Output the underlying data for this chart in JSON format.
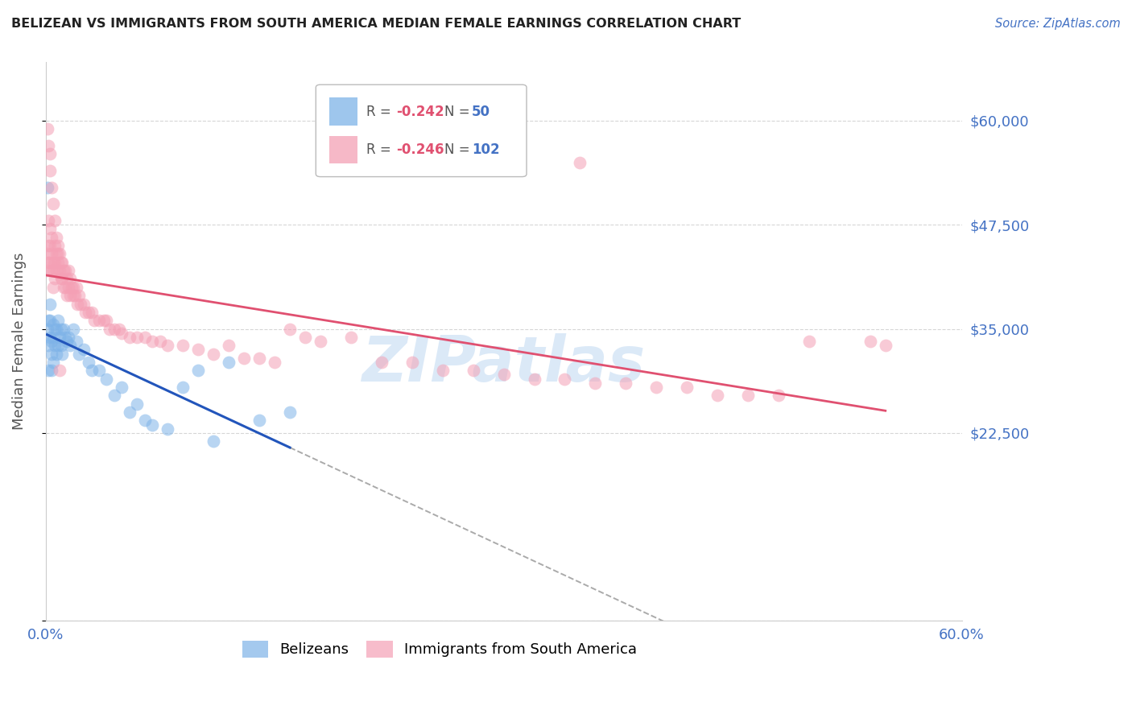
{
  "title": "BELIZEAN VS IMMIGRANTS FROM SOUTH AMERICA MEDIAN FEMALE EARNINGS CORRELATION CHART",
  "source": "Source: ZipAtlas.com",
  "ylabel": "Median Female Earnings",
  "xlim": [
    0.0,
    0.6
  ],
  "ylim": [
    0,
    67000
  ],
  "yticks": [
    0,
    22500,
    35000,
    47500,
    60000
  ],
  "ytick_labels": [
    "",
    "$22,500",
    "$35,000",
    "$47,500",
    "$60,000"
  ],
  "xticks": [
    0.0,
    0.1,
    0.2,
    0.3,
    0.4,
    0.5,
    0.6
  ],
  "xtick_labels": [
    "0.0%",
    "",
    "",
    "",
    "",
    "",
    "60.0%"
  ],
  "series1_name": "Belizeans",
  "series1_color": "#7eb3e8",
  "series1_line_color": "#2255bb",
  "series2_name": "Immigrants from South America",
  "series2_color": "#f4a0b5",
  "series2_line_color": "#e05070",
  "title_color": "#222222",
  "source_color": "#4472c4",
  "axis_label_color": "#555555",
  "ytick_color": "#4472c4",
  "xtick_color": "#4472c4",
  "grid_color": "#cccccc",
  "watermark": "ZIPatlas",
  "watermark_color": "#b8d4f0",
  "legend_R_color": "#e05070",
  "legend_N_color": "#4472c4",
  "bel_x": [
    0.001,
    0.001,
    0.002,
    0.002,
    0.002,
    0.003,
    0.003,
    0.003,
    0.004,
    0.004,
    0.004,
    0.005,
    0.005,
    0.005,
    0.006,
    0.006,
    0.007,
    0.007,
    0.008,
    0.008,
    0.009,
    0.01,
    0.01,
    0.011,
    0.012,
    0.013,
    0.014,
    0.015,
    0.016,
    0.018,
    0.02,
    0.022,
    0.025,
    0.028,
    0.03,
    0.035,
    0.04,
    0.045,
    0.05,
    0.055,
    0.06,
    0.065,
    0.07,
    0.08,
    0.09,
    0.1,
    0.11,
    0.12,
    0.14,
    0.16
  ],
  "bel_y": [
    52000,
    35000,
    36000,
    33000,
    30000,
    38000,
    36000,
    34000,
    33500,
    32000,
    30000,
    35500,
    34000,
    31000,
    35000,
    33000,
    35000,
    32000,
    36000,
    33000,
    34000,
    35000,
    33000,
    32000,
    35000,
    34000,
    33500,
    34000,
    33000,
    35000,
    33500,
    32000,
    32500,
    31000,
    30000,
    30000,
    29000,
    27000,
    28000,
    25000,
    26000,
    24000,
    23500,
    23000,
    28000,
    30000,
    21500,
    31000,
    24000,
    25000
  ],
  "sa_x": [
    0.001,
    0.001,
    0.002,
    0.002,
    0.002,
    0.003,
    0.003,
    0.003,
    0.004,
    0.004,
    0.004,
    0.005,
    0.005,
    0.005,
    0.006,
    0.006,
    0.006,
    0.007,
    0.007,
    0.008,
    0.008,
    0.009,
    0.009,
    0.01,
    0.01,
    0.011,
    0.011,
    0.012,
    0.012,
    0.013,
    0.013,
    0.014,
    0.014,
    0.015,
    0.015,
    0.016,
    0.016,
    0.017,
    0.018,
    0.018,
    0.019,
    0.02,
    0.021,
    0.022,
    0.023,
    0.025,
    0.026,
    0.028,
    0.03,
    0.032,
    0.035,
    0.038,
    0.04,
    0.042,
    0.045,
    0.048,
    0.05,
    0.055,
    0.06,
    0.065,
    0.07,
    0.075,
    0.08,
    0.09,
    0.1,
    0.11,
    0.12,
    0.13,
    0.14,
    0.15,
    0.16,
    0.17,
    0.18,
    0.2,
    0.22,
    0.24,
    0.26,
    0.28,
    0.3,
    0.32,
    0.34,
    0.36,
    0.38,
    0.4,
    0.35,
    0.42,
    0.44,
    0.46,
    0.48,
    0.5,
    0.001,
    0.002,
    0.003,
    0.003,
    0.004,
    0.005,
    0.006,
    0.007,
    0.008,
    0.009,
    0.55,
    0.54
  ],
  "sa_y": [
    44000,
    42000,
    48000,
    45000,
    43000,
    47000,
    45000,
    43000,
    46000,
    44000,
    42000,
    43000,
    42000,
    40000,
    45000,
    43000,
    41000,
    44000,
    42000,
    45000,
    43000,
    44000,
    42000,
    43000,
    41000,
    43000,
    41000,
    42000,
    40000,
    42000,
    40000,
    41000,
    39000,
    42000,
    40000,
    41000,
    39000,
    40000,
    40000,
    39000,
    39000,
    40000,
    38000,
    39000,
    38000,
    38000,
    37000,
    37000,
    37000,
    36000,
    36000,
    36000,
    36000,
    35000,
    35000,
    35000,
    34500,
    34000,
    34000,
    34000,
    33500,
    33500,
    33000,
    33000,
    32500,
    32000,
    33000,
    31500,
    31500,
    31000,
    35000,
    34000,
    33500,
    34000,
    31000,
    31000,
    30000,
    30000,
    29500,
    29000,
    29000,
    28500,
    28500,
    28000,
    55000,
    28000,
    27000,
    27000,
    27000,
    33500,
    59000,
    57000,
    56000,
    54000,
    52000,
    50000,
    48000,
    46000,
    44000,
    30000,
    33000,
    33500
  ]
}
